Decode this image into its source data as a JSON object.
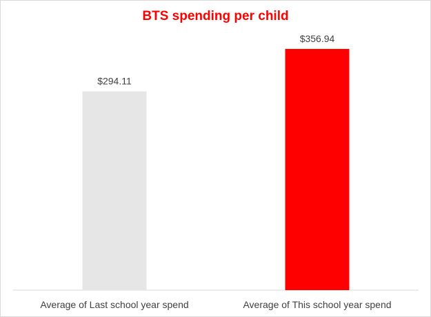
{
  "chart_data": {
    "type": "bar",
    "title": "BTS spending per child",
    "xlabel": "",
    "ylabel": "",
    "categories": [
      "Average of Last school year spend",
      "Average of This school year spend"
    ],
    "values": [
      294.11,
      356.94
    ],
    "value_labels": [
      "$294.11",
      "$356.94"
    ],
    "ylim": [
      0,
      400
    ],
    "grid": false,
    "legend": "none",
    "bar_colors": [
      "#e7e6e6",
      "#ff0000"
    ],
    "title_color": "#ff0000"
  }
}
